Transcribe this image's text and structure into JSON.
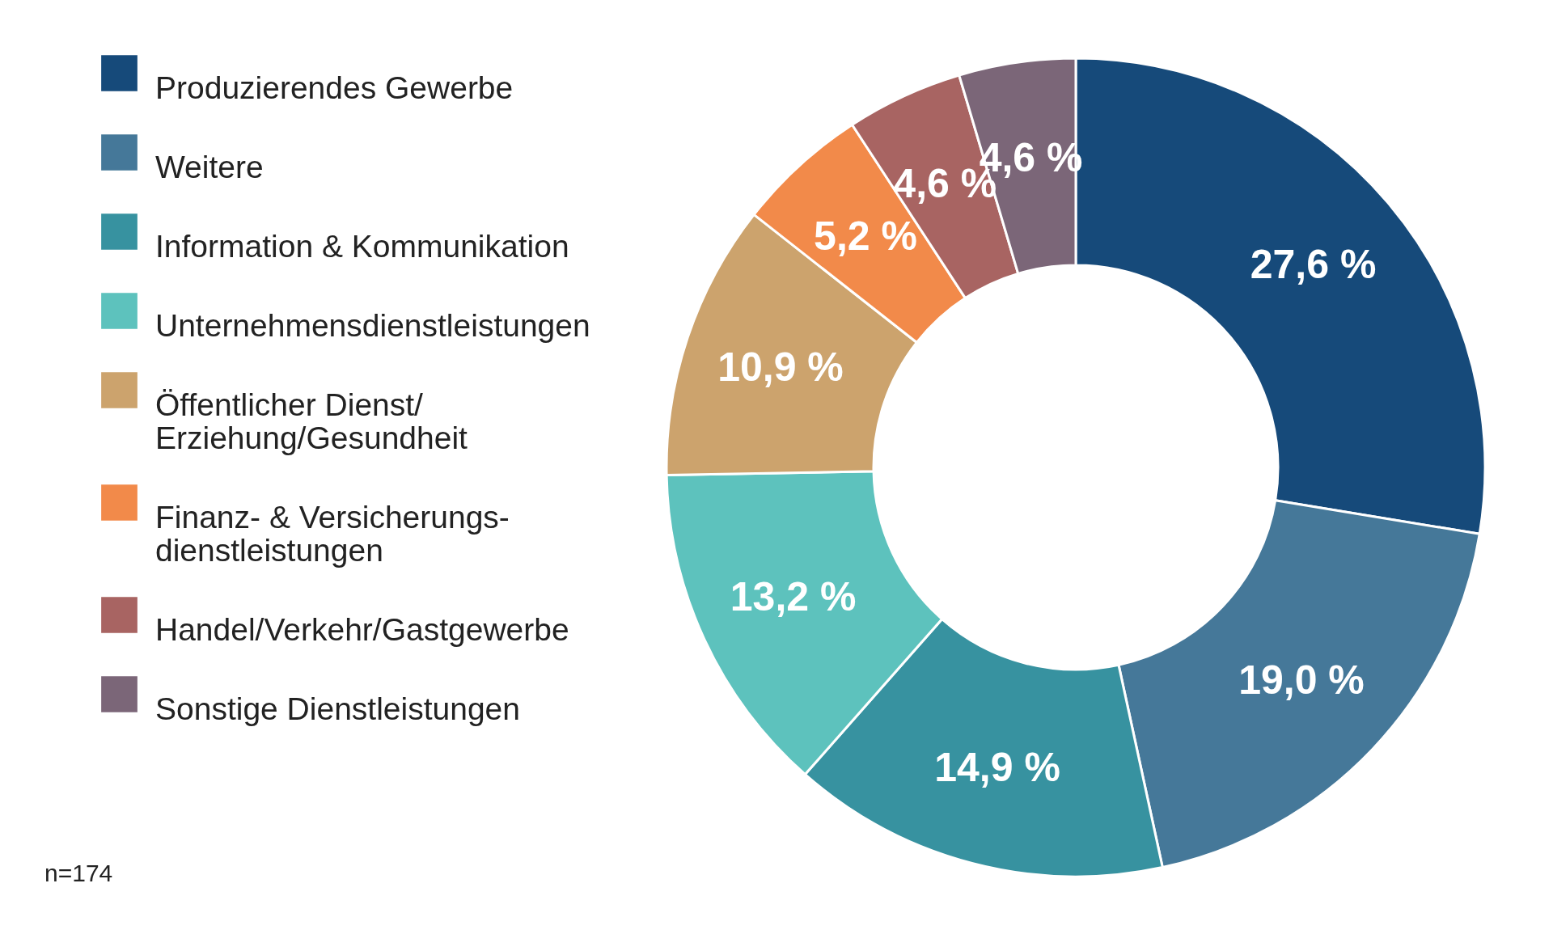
{
  "chart_data": {
    "type": "donut",
    "categories": [
      "Produzierendes Gewerbe",
      "Weitere",
      "Information & Kommunikation",
      "Unternehmensdienstleistungen",
      "Öffentlicher Dienst/\nErziehung/Gesundheit",
      "Finanz- & Versicherungs-\ndienstleistungen",
      "Handel/Verkehr/Gastgewerbe",
      "Sonstige Dienstleistungen"
    ],
    "values": [
      27.6,
      19.0,
      14.9,
      13.2,
      10.9,
      5.2,
      4.6,
      4.6
    ],
    "value_labels": [
      "27,6 %",
      "19,0 %",
      "14,9 %",
      "13,2 %",
      "10,9 %",
      "5,2 %",
      "4,6 %",
      "4,6 %"
    ],
    "colors": [
      "#164a7a",
      "#457899",
      "#3792a0",
      "#5dc2bd",
      "#cca36d",
      "#f28a4a",
      "#a86462",
      "#7b6678"
    ],
    "legend": "left",
    "annotations": [
      "n=174"
    ]
  }
}
